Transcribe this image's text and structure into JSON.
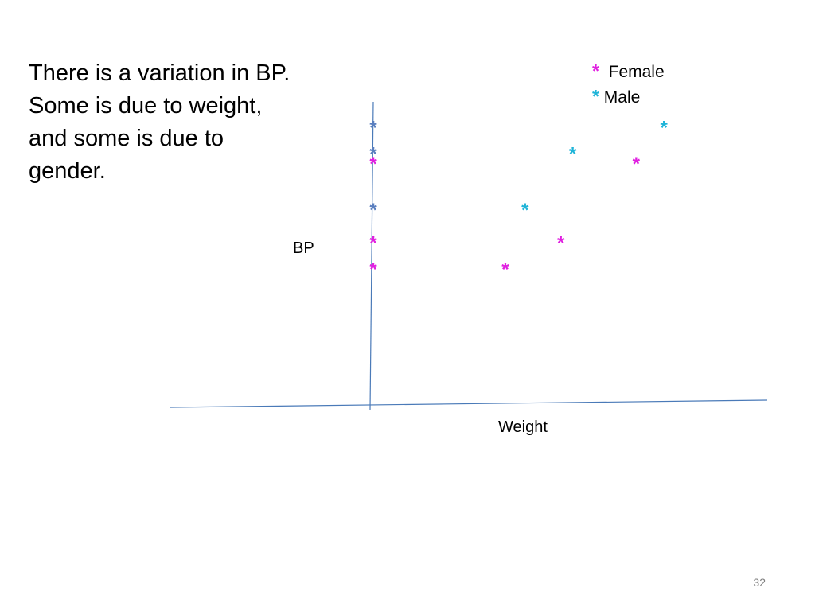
{
  "slide": {
    "text_lines": [
      "There is a variation in BP.",
      "Some is due to weight,",
      "and some is due to",
      "gender."
    ],
    "page_number": "32"
  },
  "chart_data": {
    "type": "scatter",
    "xlabel": "Weight",
    "ylabel": "BP",
    "xlim": [
      0,
      10
    ],
    "ylim": [
      0,
      10
    ],
    "marker": "*",
    "legend_position": "top-right",
    "series": [
      {
        "name": "Female",
        "color": "#e020e0",
        "points": [
          {
            "x": 5.4,
            "y": 4.2
          },
          {
            "x": 6.8,
            "y": 5.0
          },
          {
            "x": 8.7,
            "y": 7.4
          }
        ]
      },
      {
        "name": "Male",
        "color": "#1fb4d8",
        "points": [
          {
            "x": 5.9,
            "y": 6.0
          },
          {
            "x": 7.1,
            "y": 7.7
          },
          {
            "x": 9.4,
            "y": 8.5
          }
        ]
      }
    ],
    "axis_projections": [
      {
        "series": "Male",
        "y": 8.5,
        "color": "#5a7fbf"
      },
      {
        "series": "Male",
        "y": 7.7,
        "color": "#5a7fbf"
      },
      {
        "series": "Female",
        "y": 7.4,
        "color": "#e020e0"
      },
      {
        "series": "Male",
        "y": 6.0,
        "color": "#5a7fbf"
      },
      {
        "series": "Female",
        "y": 5.0,
        "color": "#e020e0"
      },
      {
        "series": "Female",
        "y": 4.2,
        "color": "#e020e0"
      }
    ],
    "axis_color": "#4a7ab8"
  }
}
